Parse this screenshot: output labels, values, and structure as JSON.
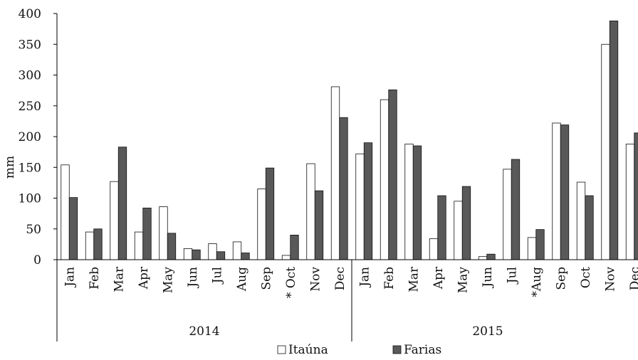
{
  "chart_data": {
    "type": "bar",
    "ylabel": "mm",
    "ylim": [
      0,
      400
    ],
    "yticks": [
      0,
      50,
      100,
      150,
      200,
      250,
      300,
      350,
      400
    ],
    "grid": false,
    "legend_position": "bottom",
    "groups": [
      {
        "label": "2014",
        "categories": [
          "Jan",
          "Feb",
          "Mar",
          "Apr",
          "May",
          "Jun",
          "Jul",
          "Aug",
          "Sep",
          "* Oct",
          "Nov",
          "Dec"
        ]
      },
      {
        "label": "2015",
        "categories": [
          "Jan",
          "Feb",
          "Mar",
          "Apr",
          "May",
          "Jun",
          "Jul",
          "*Aug",
          "Sep",
          "Oct",
          "Nov",
          "Dec"
        ]
      }
    ],
    "series": [
      {
        "name": "Itaúna",
        "color": "#ffffff",
        "values": [
          154,
          45,
          127,
          45,
          86,
          18,
          26,
          29,
          115,
          7,
          156,
          281,
          172,
          260,
          188,
          34,
          95,
          5,
          147,
          36,
          222,
          126,
          350,
          188
        ]
      },
      {
        "name": "Farias",
        "color": "#595959",
        "values": [
          101,
          50,
          183,
          84,
          43,
          16,
          13,
          11,
          149,
          40,
          112,
          231,
          190,
          276,
          185,
          104,
          119,
          9,
          163,
          49,
          219,
          104,
          388,
          206
        ]
      }
    ]
  }
}
